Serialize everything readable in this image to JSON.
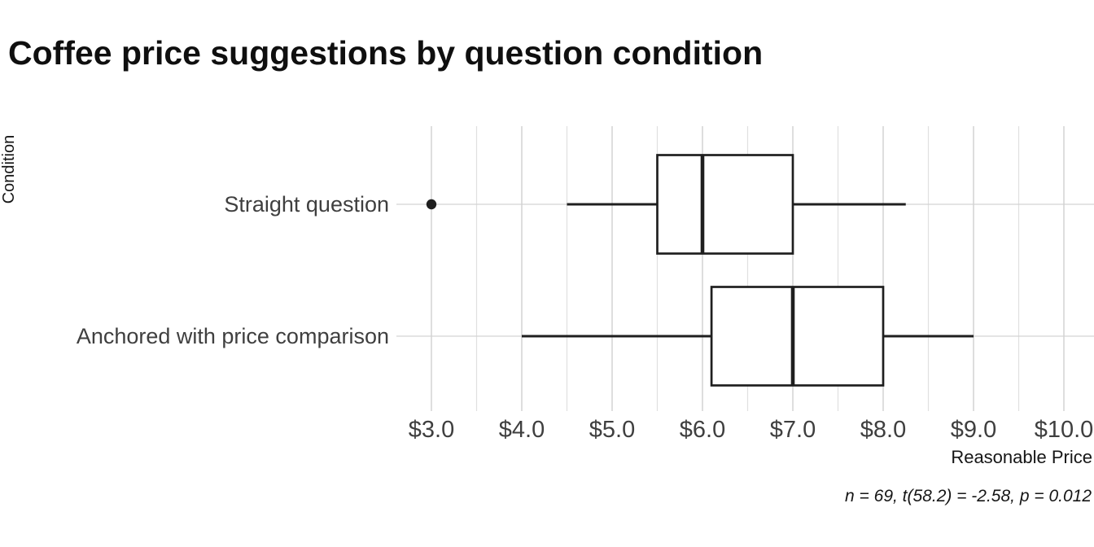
{
  "chart_data": {
    "type": "boxplot",
    "orientation": "horizontal",
    "title": "Coffee price suggestions by question condition",
    "xlabel": "Reasonable Price",
    "ylabel": "Condition",
    "caption": "n = 69, t(58.2) = -2.58, p = 0.012",
    "x_ticks": [
      {
        "value": 3,
        "label": "$3.0"
      },
      {
        "value": 4,
        "label": "$4.0"
      },
      {
        "value": 5,
        "label": "$5.0"
      },
      {
        "value": 6,
        "label": "$6.0"
      },
      {
        "value": 7,
        "label": "$7.0"
      },
      {
        "value": 8,
        "label": "$8.0"
      },
      {
        "value": 9,
        "label": "$9.0"
      },
      {
        "value": 10,
        "label": "$10.0"
      }
    ],
    "x_minor_step": 0.5,
    "xlim": [
      2.64,
      10.33
    ],
    "grid": {
      "vertical_major": true,
      "vertical_minor": true,
      "horizontal_category_lines": true
    },
    "legend": "none",
    "series": [
      {
        "category": "Straight question",
        "whisker_low": 4.5,
        "q1": 5.5,
        "median": 6.0,
        "q3": 7.0,
        "whisker_high": 8.25,
        "outliers": [
          3.0
        ]
      },
      {
        "category": "Anchored with price comparison",
        "whisker_low": 4.0,
        "q1": 6.1,
        "median": 7.0,
        "q3": 8.0,
        "whisker_high": 9.0,
        "outliers": []
      }
    ]
  },
  "colors": {
    "background": "#ffffff",
    "title": "#0f0f0f",
    "box_stroke": "#1f1f1f",
    "box_fill": "#ffffff",
    "grid_major": "#d3d3d3",
    "grid_minor": "#e0e0e0",
    "tick_label": "#3f3f3f",
    "axis_title": "#161616",
    "caption": "#161616"
  }
}
